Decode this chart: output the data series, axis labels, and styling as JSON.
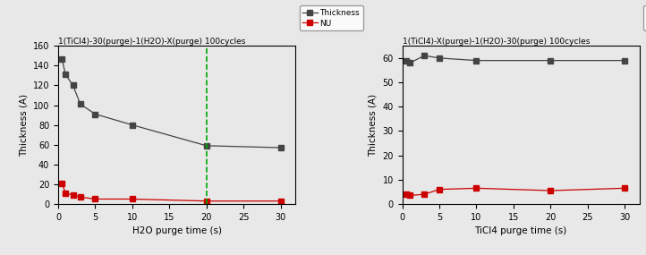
{
  "left": {
    "title": "1(TiCl4)-30(purge)-1(H2O)-X(purge) 100cycles",
    "xlabel": "H2O purge time (s)",
    "ylabel": "Thickness (A)",
    "thickness_x": [
      0.5,
      1,
      2,
      3,
      5,
      10,
      20,
      30
    ],
    "thickness_y": [
      147,
      131,
      120,
      101,
      91,
      80,
      59,
      57
    ],
    "nu_x": [
      0.5,
      1,
      2,
      3,
      5,
      10,
      20,
      30
    ],
    "nu_y": [
      21,
      11,
      9,
      7,
      5,
      5,
      3,
      3
    ],
    "vline_x": 20,
    "ylim": [
      0,
      160
    ],
    "xlim": [
      0,
      32
    ],
    "yticks": [
      0,
      20,
      40,
      60,
      80,
      100,
      120,
      140,
      160
    ],
    "xticks": [
      0,
      5,
      10,
      15,
      20,
      25,
      30
    ]
  },
  "right": {
    "title": "1(TiCl4)-X(purge)-1(H2O)-30(purge) 100cycles",
    "xlabel": "TiCl4 purge time (s)",
    "ylabel": "Thickness (A)",
    "thickness_x": [
      0.5,
      1,
      3,
      5,
      10,
      20,
      30
    ],
    "thickness_y": [
      59,
      58,
      61,
      60,
      59,
      59,
      59
    ],
    "nu_x": [
      0.5,
      1,
      3,
      5,
      10,
      20,
      30
    ],
    "nu_y": [
      4,
      3.5,
      4,
      6,
      6.5,
      5.5,
      6.5
    ],
    "ylim": [
      0,
      65
    ],
    "xlim": [
      0,
      32
    ],
    "yticks": [
      0,
      10,
      20,
      30,
      40,
      50,
      60
    ],
    "xticks": [
      0,
      5,
      10,
      15,
      20,
      25,
      30
    ]
  },
  "thickness_color": "#444444",
  "nu_color": "#cc0000",
  "legend_thickness_label": "Thickness",
  "legend_nu_label": "NU",
  "vline_color": "#00aa00",
  "marker": "s",
  "linewidth": 0.9,
  "markersize": 4,
  "bg_color": "#e8e8e8"
}
